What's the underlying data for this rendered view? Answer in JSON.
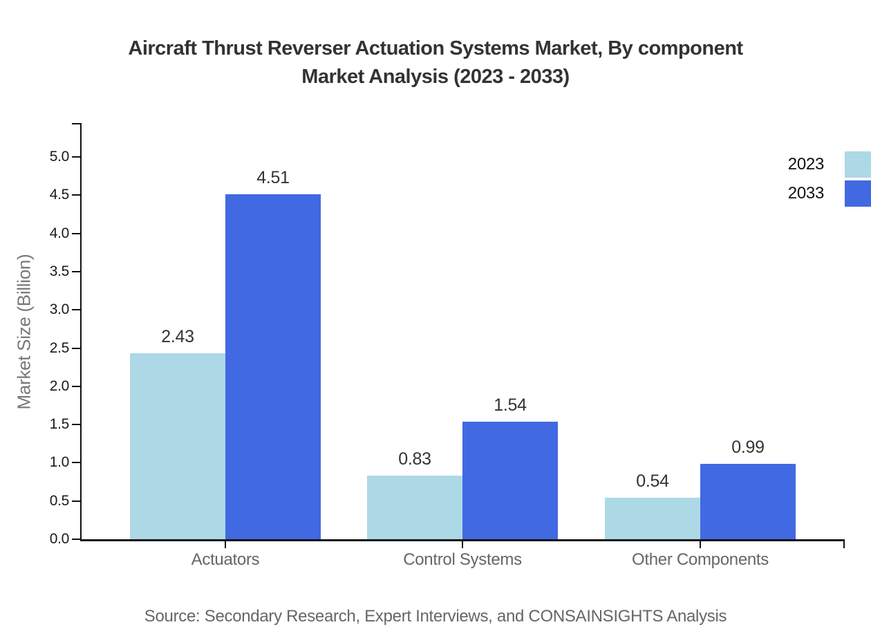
{
  "title": {
    "line1": "Aircraft Thrust Reverser Actuation Systems Market, By component",
    "line2": "Market Analysis (2023 - 2033)"
  },
  "source": "Source: Secondary Research, Expert Interviews, and CONSAINSIGHTS Analysis",
  "chart_data": {
    "type": "bar",
    "title": "Aircraft Thrust Reverser Actuation Systems Market, By component Market Analysis (2023 - 2033)",
    "categories": [
      "Actuators",
      "Control Systems",
      "Other Components"
    ],
    "series": [
      {
        "name": "2023",
        "color": "#ADD8E6",
        "values": [
          2.43,
          0.83,
          0.54
        ]
      },
      {
        "name": "2033",
        "color": "#4169E1",
        "values": [
          4.51,
          1.54,
          0.99
        ]
      }
    ],
    "xlabel": "",
    "ylabel": "Market Size (Billion)",
    "ylim": [
      0.0,
      5.0
    ],
    "ytick_step": 0.5,
    "ytick_labels": [
      "0.0",
      "0.5",
      "1.0",
      "1.5",
      "2.0",
      "2.5",
      "3.0",
      "3.5",
      "4.0",
      "4.5",
      "5.0"
    ],
    "value_labels": [
      "2.43",
      "4.51",
      "0.83",
      "1.54",
      "0.54",
      "0.99"
    ],
    "grid": false,
    "legend_position": "top-right",
    "source": "Source: Secondary Research, Expert Interviews, and CONSAINSIGHTS Analysis"
  }
}
